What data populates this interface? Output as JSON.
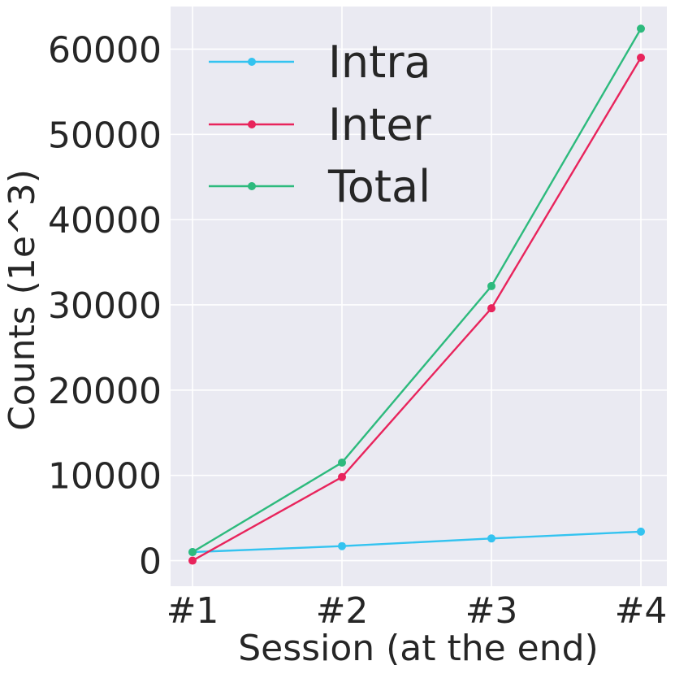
{
  "chart_data": {
    "type": "line",
    "title": "",
    "xlabel": "Session (at the end)",
    "ylabel": "Counts (1e^3)",
    "categories": [
      "#1",
      "#2",
      "#3",
      "#4"
    ],
    "yticks": [
      "0",
      "10000",
      "20000",
      "30000",
      "40000",
      "50000",
      "60000"
    ],
    "ylim": [
      -3000,
      65000
    ],
    "grid": true,
    "legend_position": "top-left",
    "background_color": "#EAEAF2",
    "series": [
      {
        "name": "Intra",
        "color": "#33C3F0",
        "values": [
          1000,
          1700,
          2600,
          3400
        ]
      },
      {
        "name": "Inter",
        "color": "#E8245C",
        "values": [
          0,
          9800,
          29600,
          59000
        ]
      },
      {
        "name": "Total",
        "color": "#2DBA7D",
        "values": [
          1000,
          11500,
          32200,
          62400
        ]
      }
    ]
  }
}
